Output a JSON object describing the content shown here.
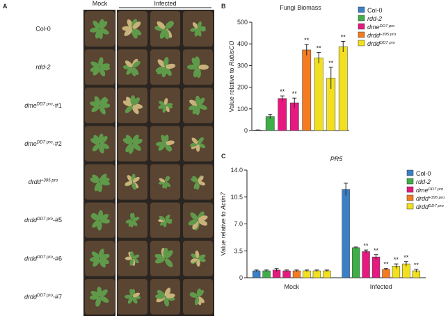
{
  "panel_a": {
    "letter": "A",
    "mock_label": "Mock",
    "infected_label": "Infected",
    "rows": [
      {
        "name": "Col-0",
        "italic": false
      },
      {
        "name": "rdd-2",
        "italic": true
      },
      {
        "name": "dme",
        "sup": "DD7 pro",
        "suffix": "-#1",
        "italic": true
      },
      {
        "name": "dme",
        "sup": "DD7 pro",
        "suffix": "-#2",
        "italic": true
      },
      {
        "name": "drdd",
        "sup": "+395 pro",
        "italic": true
      },
      {
        "name": "drdd",
        "sup": "DD7 pro",
        "suffix": "-#5",
        "italic": true
      },
      {
        "name": "drdd",
        "sup": "DD7 pro",
        "suffix": "-#6",
        "italic": true
      },
      {
        "name": "drdd",
        "sup": "DD7 pro",
        "suffix": "-#7",
        "italic": true
      }
    ]
  },
  "chart_data": [
    {
      "type": "bar",
      "letter": "B",
      "title": "Fungi Biomass",
      "ylabel": "Value relative to ",
      "ylabel_italic": "RubisCO",
      "values": [
        2,
        65,
        148,
        128,
        372,
        335,
        242,
        387
      ],
      "errors": [
        1,
        10,
        12,
        22,
        25,
        25,
        50,
        25
      ],
      "significance": [
        null,
        null,
        "**",
        "**",
        "**",
        "**",
        "**",
        "**"
      ],
      "bar_colors": [
        "#3b7fc4",
        "#3fae49",
        "#e5197f",
        "#e5197f",
        "#f47b20",
        "#f2e01f",
        "#f2e01f",
        "#f2e01f"
      ],
      "ylim": [
        0,
        500
      ],
      "yticks": [
        0,
        100,
        200,
        300,
        400,
        500
      ],
      "legend": [
        {
          "name": "Col-0",
          "italic": false,
          "color": "#3b7fc4"
        },
        {
          "name": "rdd-2",
          "italic": true,
          "color": "#3fae49"
        },
        {
          "name": "dme",
          "sup": "DD7 pro",
          "italic": true,
          "color": "#e5197f"
        },
        {
          "name": "drdd",
          "sup": "+395 pro",
          "italic": true,
          "color": "#f47b20"
        },
        {
          "name": "drdd",
          "sup": "DD7 pro",
          "italic": true,
          "color": "#f2e01f"
        }
      ]
    },
    {
      "type": "grouped_bar",
      "letter": "C",
      "title": "PR5",
      "ylabel": "Value relative to ",
      "ylabel_italic": "Actin7",
      "groups": [
        {
          "name": "Mock",
          "values": [
            0.9,
            0.9,
            1.0,
            0.9,
            0.9,
            0.9,
            0.9,
            0.9
          ],
          "errors": [
            0.1,
            0.1,
            0.2,
            0.1,
            0.1,
            0.1,
            0.1,
            0.1
          ],
          "significance": [
            null,
            null,
            null,
            null,
            null,
            null,
            null,
            null
          ]
        },
        {
          "name": "Infected",
          "values": [
            11.5,
            3.9,
            3.4,
            2.7,
            1.1,
            1.5,
            1.8,
            0.9
          ],
          "errors": [
            0.8,
            0.1,
            0.2,
            0.3,
            0.1,
            0.3,
            0.3,
            0.2
          ],
          "significance": [
            null,
            null,
            "**",
            "**",
            "**",
            "**",
            "**",
            "**"
          ]
        }
      ],
      "bar_colors": [
        "#3b7fc4",
        "#3fae49",
        "#e5197f",
        "#e5197f",
        "#f47b20",
        "#f2e01f",
        "#f2e01f",
        "#f2e01f"
      ],
      "ylim": [
        0,
        14
      ],
      "yticks": [
        0,
        3.5,
        {
          "value": 7,
          "label": "7.0"
        },
        10.5,
        {
          "value": 14,
          "label": "14.0"
        }
      ],
      "legend": [
        {
          "name": "Col-0",
          "italic": false,
          "color": "#3b7fc4"
        },
        {
          "name": "rdd-2",
          "italic": true,
          "color": "#3fae49"
        },
        {
          "name": "dme",
          "sup": "DD7 pro",
          "italic": true,
          "color": "#e5197f"
        },
        {
          "name": "drdd",
          "sup": "+395 pro",
          "italic": true,
          "color": "#f47b20"
        },
        {
          "name": "drdd",
          "sup": "DD7 pro",
          "italic": true,
          "color": "#f2e01f"
        }
      ]
    }
  ]
}
